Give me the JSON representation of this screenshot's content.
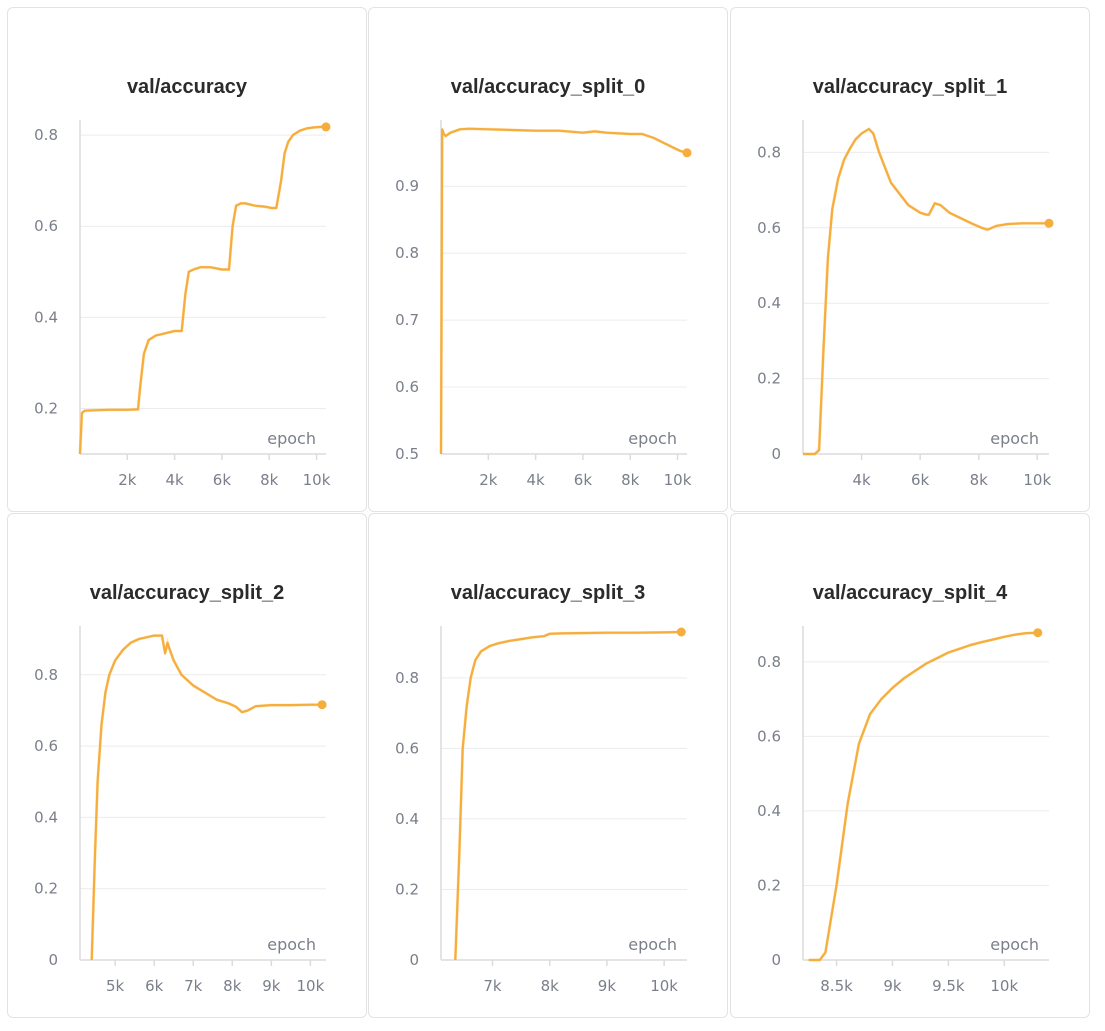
{
  "colors": {
    "line": "#f5ad3c",
    "raw": "#ffd08a",
    "grid": "#ececec",
    "tick": "#7a7f8a"
  },
  "chart_data": [
    {
      "type": "line",
      "title": "val/accuracy",
      "xlabel": "epoch",
      "xlim": [
        0,
        10400
      ],
      "ylim": [
        0.1,
        0.82
      ],
      "xticks": [
        {
          "v": 2000,
          "label": "2k"
        },
        {
          "v": 4000,
          "label": "4k"
        },
        {
          "v": 6000,
          "label": "6k"
        },
        {
          "v": 8000,
          "label": "8k"
        },
        {
          "v": 10000,
          "label": "10k"
        }
      ],
      "yticks": [
        {
          "v": 0.2,
          "label": "0.2"
        },
        {
          "v": 0.4,
          "label": "0.4"
        },
        {
          "v": 0.6,
          "label": "0.6"
        },
        {
          "v": 0.8,
          "label": "0.8"
        }
      ],
      "series": [
        {
          "x": [
            0,
            80,
            200,
            600,
            1200,
            2000,
            2450,
            2550,
            2700,
            2900,
            3200,
            3600,
            4000,
            4300,
            4450,
            4600,
            4800,
            5100,
            5500,
            6000,
            6300,
            6450,
            6600,
            6800,
            7000,
            7400,
            7800,
            8100,
            8300,
            8500,
            8650,
            8800,
            9000,
            9300,
            9600,
            9900,
            10200,
            10400
          ],
          "y": [
            0.1,
            0.19,
            0.195,
            0.196,
            0.197,
            0.197,
            0.198,
            0.25,
            0.32,
            0.35,
            0.36,
            0.365,
            0.37,
            0.37,
            0.45,
            0.5,
            0.505,
            0.51,
            0.51,
            0.505,
            0.505,
            0.6,
            0.645,
            0.65,
            0.65,
            0.645,
            0.643,
            0.64,
            0.64,
            0.7,
            0.76,
            0.785,
            0.8,
            0.81,
            0.815,
            0.817,
            0.818,
            0.818
          ]
        }
      ]
    },
    {
      "type": "line",
      "title": "val/accuracy_split_0",
      "xlabel": "epoch",
      "xlim": [
        0,
        10400
      ],
      "ylim": [
        0.5,
        0.99
      ],
      "xticks": [
        {
          "v": 2000,
          "label": "2k"
        },
        {
          "v": 4000,
          "label": "4k"
        },
        {
          "v": 6000,
          "label": "6k"
        },
        {
          "v": 8000,
          "label": "8k"
        },
        {
          "v": 10000,
          "label": "10k"
        }
      ],
      "yticks": [
        {
          "v": 0.5,
          "label": "0.5"
        },
        {
          "v": 0.6,
          "label": "0.6"
        },
        {
          "v": 0.7,
          "label": "0.7"
        },
        {
          "v": 0.8,
          "label": "0.8"
        },
        {
          "v": 0.9,
          "label": "0.9"
        }
      ],
      "series": [
        {
          "x": [
            0,
            50,
            120,
            200,
            400,
            800,
            1200,
            2000,
            3000,
            4000,
            5000,
            6000,
            6500,
            7000,
            8000,
            8500,
            9000,
            9400,
            9800,
            10100,
            10400
          ],
          "y": [
            0.5,
            0.985,
            0.978,
            0.975,
            0.98,
            0.985,
            0.986,
            0.985,
            0.984,
            0.983,
            0.983,
            0.98,
            0.982,
            0.98,
            0.978,
            0.978,
            0.972,
            0.965,
            0.958,
            0.953,
            0.95
          ]
        }
      ]
    },
    {
      "type": "line",
      "title": "val/accuracy_split_1",
      "xlabel": "epoch",
      "xlim": [
        2000,
        10400
      ],
      "ylim": [
        0,
        0.87
      ],
      "xticks": [
        {
          "v": 4000,
          "label": "4k"
        },
        {
          "v": 6000,
          "label": "6k"
        },
        {
          "v": 8000,
          "label": "8k"
        },
        {
          "v": 10000,
          "label": "10k"
        }
      ],
      "yticks": [
        {
          "v": 0,
          "label": "0"
        },
        {
          "v": 0.2,
          "label": "0.2"
        },
        {
          "v": 0.4,
          "label": "0.4"
        },
        {
          "v": 0.6,
          "label": "0.6"
        },
        {
          "v": 0.8,
          "label": "0.8"
        }
      ],
      "series": [
        {
          "x": [
            2000,
            2400,
            2550,
            2700,
            2850,
            3000,
            3200,
            3400,
            3600,
            3800,
            4000,
            4250,
            4400,
            4600,
            4800,
            5000,
            5300,
            5600,
            6000,
            6200,
            6300,
            6500,
            6700,
            7000,
            7400,
            7800,
            8100,
            8300,
            8600,
            9000,
            9500,
            10000,
            10400
          ],
          "y": [
            0,
            0,
            0.01,
            0.28,
            0.52,
            0.65,
            0.73,
            0.78,
            0.81,
            0.835,
            0.85,
            0.862,
            0.85,
            0.8,
            0.76,
            0.72,
            0.69,
            0.66,
            0.64,
            0.635,
            0.635,
            0.665,
            0.66,
            0.64,
            0.625,
            0.61,
            0.6,
            0.595,
            0.605,
            0.61,
            0.612,
            0.612,
            0.612
          ]
        }
      ]
    },
    {
      "type": "line",
      "title": "val/accuracy_split_2",
      "xlabel": "epoch",
      "xlim": [
        4100,
        10400
      ],
      "ylim": [
        0,
        0.92
      ],
      "xticks": [
        {
          "v": 5000,
          "label": "5k"
        },
        {
          "v": 6000,
          "label": "6k"
        },
        {
          "v": 7000,
          "label": "7k"
        },
        {
          "v": 8000,
          "label": "8k"
        },
        {
          "v": 9000,
          "label": "9k"
        },
        {
          "v": 10000,
          "label": "10k"
        }
      ],
      "yticks": [
        {
          "v": 0,
          "label": "0"
        },
        {
          "v": 0.2,
          "label": "0.2"
        },
        {
          "v": 0.4,
          "label": "0.4"
        },
        {
          "v": 0.6,
          "label": "0.6"
        },
        {
          "v": 0.8,
          "label": "0.8"
        }
      ],
      "series": [
        {
          "x": [
            4400,
            4480,
            4550,
            4650,
            4750,
            4850,
            5000,
            5200,
            5400,
            5600,
            5800,
            6000,
            6200,
            6280,
            6340,
            6400,
            6500,
            6700,
            7000,
            7300,
            7600,
            7900,
            8100,
            8250,
            8400,
            8600,
            9000,
            9500,
            10000,
            10300
          ],
          "y": [
            0,
            0.28,
            0.5,
            0.66,
            0.75,
            0.8,
            0.84,
            0.87,
            0.89,
            0.9,
            0.905,
            0.91,
            0.91,
            0.86,
            0.89,
            0.87,
            0.84,
            0.8,
            0.77,
            0.75,
            0.73,
            0.72,
            0.71,
            0.695,
            0.7,
            0.712,
            0.715,
            0.715,
            0.716,
            0.716
          ]
        }
      ]
    },
    {
      "type": "line",
      "title": "val/accuracy_split_3",
      "xlabel": "epoch",
      "xlim": [
        6100,
        10400
      ],
      "ylim": [
        0,
        0.93
      ],
      "xticks": [
        {
          "v": 7000,
          "label": "7k"
        },
        {
          "v": 8000,
          "label": "8k"
        },
        {
          "v": 9000,
          "label": "9k"
        },
        {
          "v": 10000,
          "label": "10k"
        }
      ],
      "yticks": [
        {
          "v": 0,
          "label": "0"
        },
        {
          "v": 0.2,
          "label": "0.2"
        },
        {
          "v": 0.4,
          "label": "0.4"
        },
        {
          "v": 0.6,
          "label": "0.6"
        },
        {
          "v": 0.8,
          "label": "0.8"
        }
      ],
      "series": [
        {
          "x": [
            6350,
            6420,
            6480,
            6550,
            6620,
            6700,
            6800,
            6950,
            7100,
            7300,
            7500,
            7700,
            7900,
            8000,
            8200,
            8500,
            9000,
            9500,
            10000,
            10300
          ],
          "y": [
            0,
            0.3,
            0.6,
            0.72,
            0.8,
            0.85,
            0.875,
            0.89,
            0.898,
            0.905,
            0.91,
            0.915,
            0.918,
            0.925,
            0.926,
            0.927,
            0.928,
            0.928,
            0.929,
            0.93
          ]
        }
      ]
    },
    {
      "type": "line",
      "title": "val/accuracy_split_4",
      "xlabel": "epoch",
      "xlim": [
        8200,
        10400
      ],
      "ylim": [
        0,
        0.88
      ],
      "xticks": [
        {
          "v": 8500,
          "label": "8.5k"
        },
        {
          "v": 9000,
          "label": "9k"
        },
        {
          "v": 9500,
          "label": "9.5k"
        },
        {
          "v": 10000,
          "label": "10k"
        }
      ],
      "yticks": [
        {
          "v": 0,
          "label": "0"
        },
        {
          "v": 0.2,
          "label": "0.2"
        },
        {
          "v": 0.4,
          "label": "0.4"
        },
        {
          "v": 0.6,
          "label": "0.6"
        },
        {
          "v": 0.8,
          "label": "0.8"
        }
      ],
      "series": [
        {
          "x": [
            8250,
            8350,
            8400,
            8500,
            8600,
            8700,
            8800,
            8900,
            9000,
            9100,
            9200,
            9300,
            9400,
            9500,
            9600,
            9700,
            9800,
            9900,
            10000,
            10100,
            10200,
            10300
          ],
          "y": [
            0,
            0,
            0.02,
            0.2,
            0.42,
            0.58,
            0.66,
            0.7,
            0.73,
            0.755,
            0.775,
            0.795,
            0.81,
            0.825,
            0.835,
            0.845,
            0.853,
            0.86,
            0.867,
            0.873,
            0.877,
            0.878
          ]
        }
      ]
    }
  ]
}
